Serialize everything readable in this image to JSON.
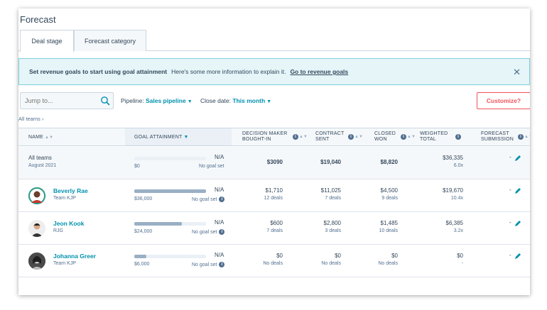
{
  "page": {
    "title": "Forecast"
  },
  "tabs": [
    {
      "label": "Deal stage"
    },
    {
      "label": "Forecast category"
    }
  ],
  "banner": {
    "title": "Set revenue goals to start using goal attainment",
    "info": "Here's some more information to explain it.",
    "link": "Go to revenue goals"
  },
  "filters": {
    "search_placeholder": "Jump to...",
    "pipeline_label": "Pipeline:",
    "pipeline_value": "Sales pipeline",
    "close_date_label": "Close date:",
    "close_date_value": "This month",
    "customize_label": "Customize?"
  },
  "breadcrumb": "All teams",
  "columns": {
    "name": "NAME",
    "goal": "GOAL ATTAINMENT",
    "decision_1": "DECISION MAKER",
    "decision_2": "BOUGHT-IN",
    "contract_1": "CONTRACT",
    "contract_2": "SENT",
    "closed_1": "CLOSED",
    "closed_2": "WON",
    "weighted_1": "WEIGHTED",
    "weighted_2": "TOTAL",
    "forecast_1": "FORECAST",
    "forecast_2": "SUBMISSION"
  },
  "rows": [
    {
      "name": "All teams",
      "sub": "August 2021",
      "goal_pct": "N/A",
      "goal_amount": "$0",
      "goal_status": "No goal set",
      "goal_fill": 0,
      "decision": "$3090",
      "decision_sub": "",
      "contract": "$19,040",
      "contract_sub": "",
      "closed": "$8,820",
      "closed_sub": "",
      "weighted": "$36,335",
      "weighted_sub": "6.0x",
      "forecast": "-"
    },
    {
      "name": "Beverly Rae",
      "sub": "Team KJP",
      "goal_pct": "N/A",
      "goal_amount": "$36,000",
      "goal_status": "No goal set",
      "goal_fill": 1,
      "decision": "$1,710",
      "decision_sub": "12 deals",
      "contract": "$11,025",
      "contract_sub": "7 deals",
      "closed": "$4,500",
      "closed_sub": "9 deals",
      "weighted": "$19,670",
      "weighted_sub": "10.4x",
      "forecast": "-"
    },
    {
      "name": "Jeon Kook",
      "sub": "RJG",
      "goal_pct": "N/A",
      "goal_amount": "$24,000",
      "goal_status": "No goal set",
      "goal_fill": 0.66,
      "decision": "$600",
      "decision_sub": "7 deals",
      "contract": "$2,800",
      "contract_sub": "3 deals",
      "closed": "$1,485",
      "closed_sub": "10 deals",
      "weighted": "$6,385",
      "weighted_sub": "3.2x",
      "forecast": "-"
    },
    {
      "name": "Johanna Greer",
      "sub": "Team KJP",
      "goal_pct": "N/A",
      "goal_amount": "$6,000",
      "goal_status": "No goal set",
      "goal_fill": 0.17,
      "decision": "$0",
      "decision_sub": "No deals",
      "contract": "$0",
      "contract_sub": "No deals",
      "closed": "$0",
      "closed_sub": "No deals",
      "weighted": "$0",
      "weighted_sub": "-",
      "forecast": "-"
    }
  ],
  "colors": {
    "accent": "#0091ae",
    "customize": "#f2545b",
    "bar": "#99afc4"
  }
}
